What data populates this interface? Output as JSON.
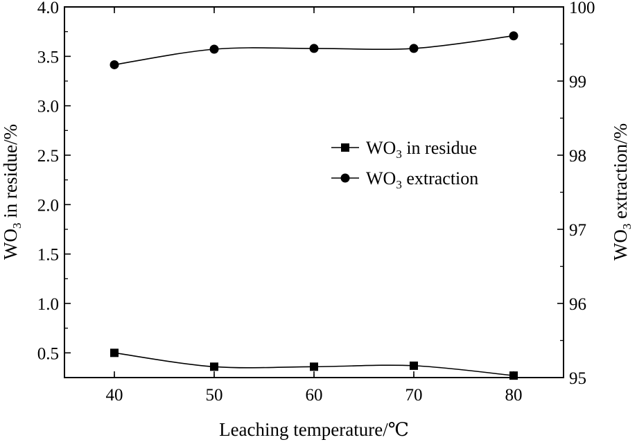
{
  "chart_data": {
    "type": "line",
    "title": "",
    "x": [
      40,
      50,
      60,
      70,
      80
    ],
    "x_ticks": [
      "40",
      "50",
      "60",
      "70",
      "80"
    ],
    "xlim": [
      35,
      85
    ],
    "xlabel": "Leaching temperature/℃",
    "ylabel_left": {
      "main": "WO",
      "sub": "3",
      "rest": " in residue/%"
    },
    "ylabel_right": {
      "main": "WO",
      "sub": "3",
      "rest": " extraction/%"
    },
    "ylim_left": [
      0.25,
      4.0
    ],
    "ylim_right": [
      95,
      100
    ],
    "yticks_left": [
      "0.5",
      "1.0",
      "1.5",
      "2.0",
      "2.5",
      "3.0",
      "3.5",
      "4.0"
    ],
    "yticks_left_values": [
      0.5,
      1.0,
      1.5,
      2.0,
      2.5,
      3.0,
      3.5,
      4.0
    ],
    "yticks_right": [
      "95",
      "96",
      "97",
      "98",
      "99",
      "100"
    ],
    "yticks_right_values": [
      95,
      96,
      97,
      98,
      99,
      100
    ],
    "grid": false,
    "legend_position": "center-right",
    "series": [
      {
        "name": {
          "main": "WO",
          "sub": "3",
          "rest": " in residue"
        },
        "axis": "left",
        "marker": "square",
        "values": [
          0.5,
          0.36,
          0.36,
          0.37,
          0.27
        ]
      },
      {
        "name": {
          "main": "WO",
          "sub": "3",
          "rest": " extraction"
        },
        "axis": "right",
        "marker": "circle",
        "values": [
          99.22,
          99.43,
          99.44,
          99.44,
          99.61
        ]
      }
    ],
    "colors": {
      "line": "#000000",
      "background": "#ffffff"
    }
  }
}
